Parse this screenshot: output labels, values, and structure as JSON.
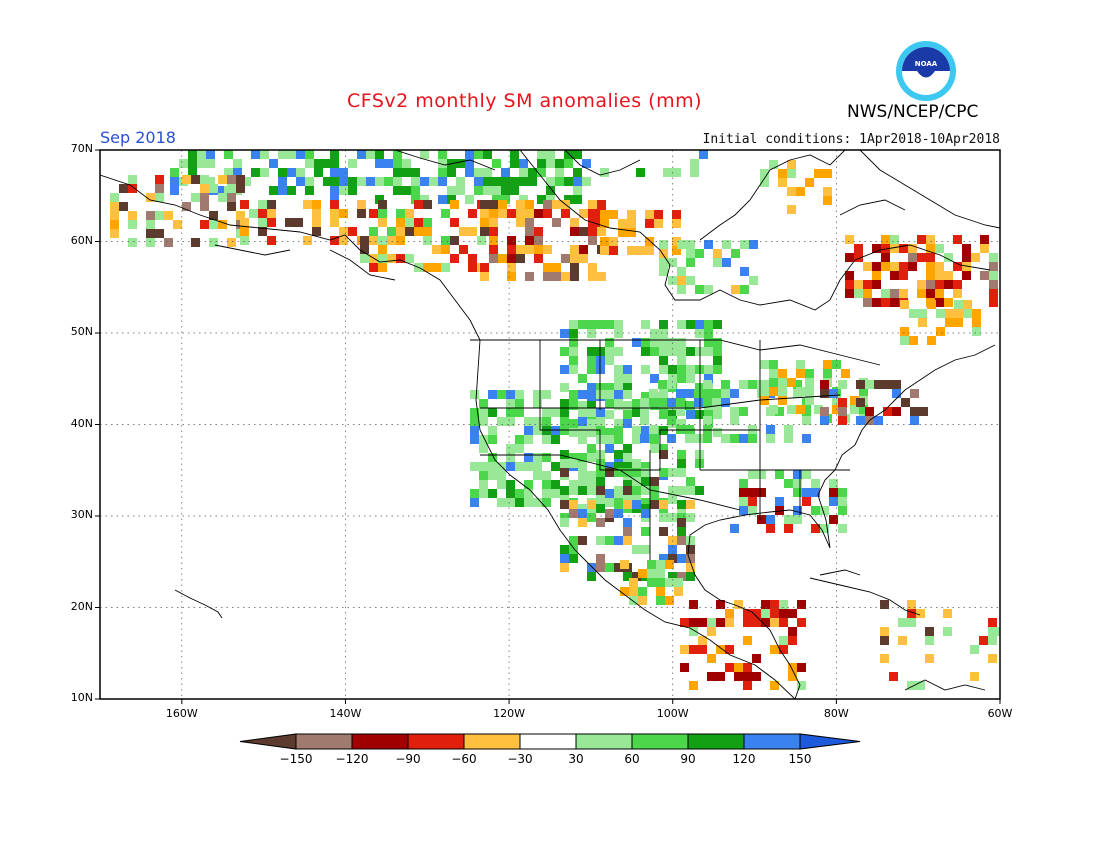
{
  "title": "CFSv2 monthly SM anomalies (mm)",
  "month": "Sep 2018",
  "initial_conditions": "Initial conditions: 1Apr2018-10Apr2018",
  "agency": "NWS/NCEP/CPC",
  "logo_text": "NOAA",
  "map": {
    "region": "North America",
    "lon_range": [
      -170,
      -60
    ],
    "lat_range": [
      10,
      70
    ],
    "grid": "dotted",
    "lat_labels": [
      "70N",
      "60N",
      "50N",
      "40N",
      "30N",
      "20N",
      "10N"
    ],
    "lon_labels": [
      "160W",
      "140W",
      "120W",
      "100W",
      "80W",
      "60W"
    ]
  },
  "colorbar": {
    "ticks": [
      "-150",
      "-120",
      "-90",
      "-60",
      "-30",
      "30",
      "60",
      "90",
      "120",
      "150"
    ],
    "colors": [
      "#5c3a2e",
      "#a07a6e",
      "#a00000",
      "#e0200c",
      "#ffa500",
      "#ffc040",
      "#ffffff",
      "#98e898",
      "#4cd64c",
      "#14a014",
      "#3a82f0",
      "#1e5adc"
    ]
  }
}
